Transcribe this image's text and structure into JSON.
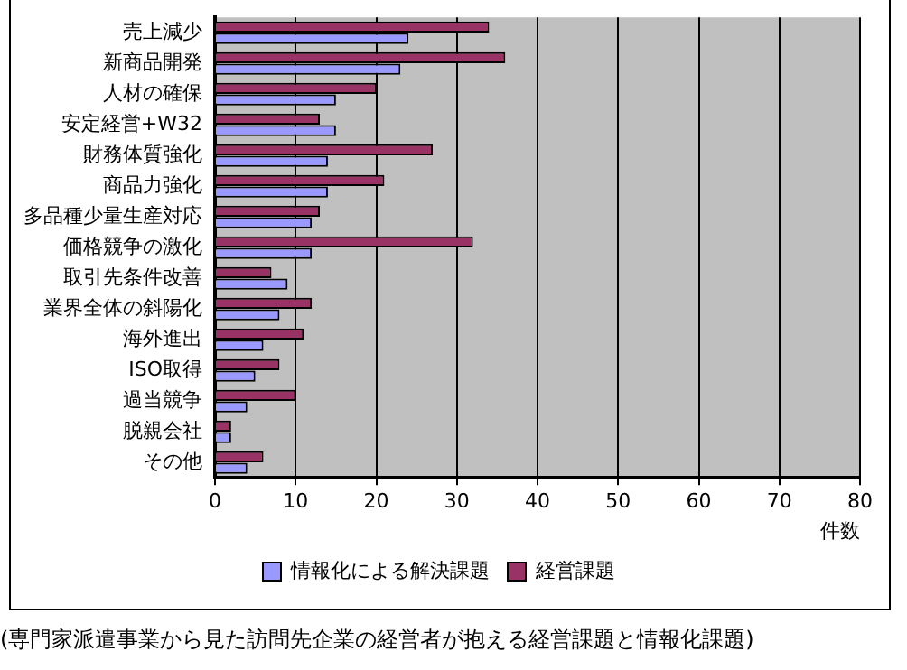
{
  "chart_data": {
    "type": "bar",
    "orientation": "horizontal",
    "categories": [
      "売上減少",
      "新商品開発",
      "人材の確保",
      "安定経営+W32",
      "財務体質強化",
      "商品力強化",
      "多品種少量生産対応",
      "価格競争の激化",
      "取引先条件改善",
      "業界全体の斜陽化",
      "海外進出",
      "ISO取得",
      "過当競争",
      "脱親会社",
      "その他"
    ],
    "series": [
      {
        "name": "情報化による解決課題",
        "color": "#9999ff",
        "values": [
          24,
          23,
          15,
          15,
          14,
          14,
          12,
          12,
          9,
          8,
          6,
          5,
          4,
          2,
          4
        ]
      },
      {
        "name": "経営課題",
        "color": "#993366",
        "values": [
          34,
          36,
          20,
          13,
          27,
          21,
          13,
          32,
          7,
          12,
          11,
          8,
          10,
          2,
          6
        ]
      }
    ],
    "xlim": [
      0,
      80
    ],
    "xticks": [
      0,
      10,
      20,
      30,
      40,
      50,
      60,
      70,
      80
    ],
    "xlabel": "件数",
    "grid": "x",
    "legend": "bottom",
    "annotations": [
      "(専門家派遣事業から見た訪問先企業の経営者が抱える経営課題と情報化課題)"
    ]
  }
}
